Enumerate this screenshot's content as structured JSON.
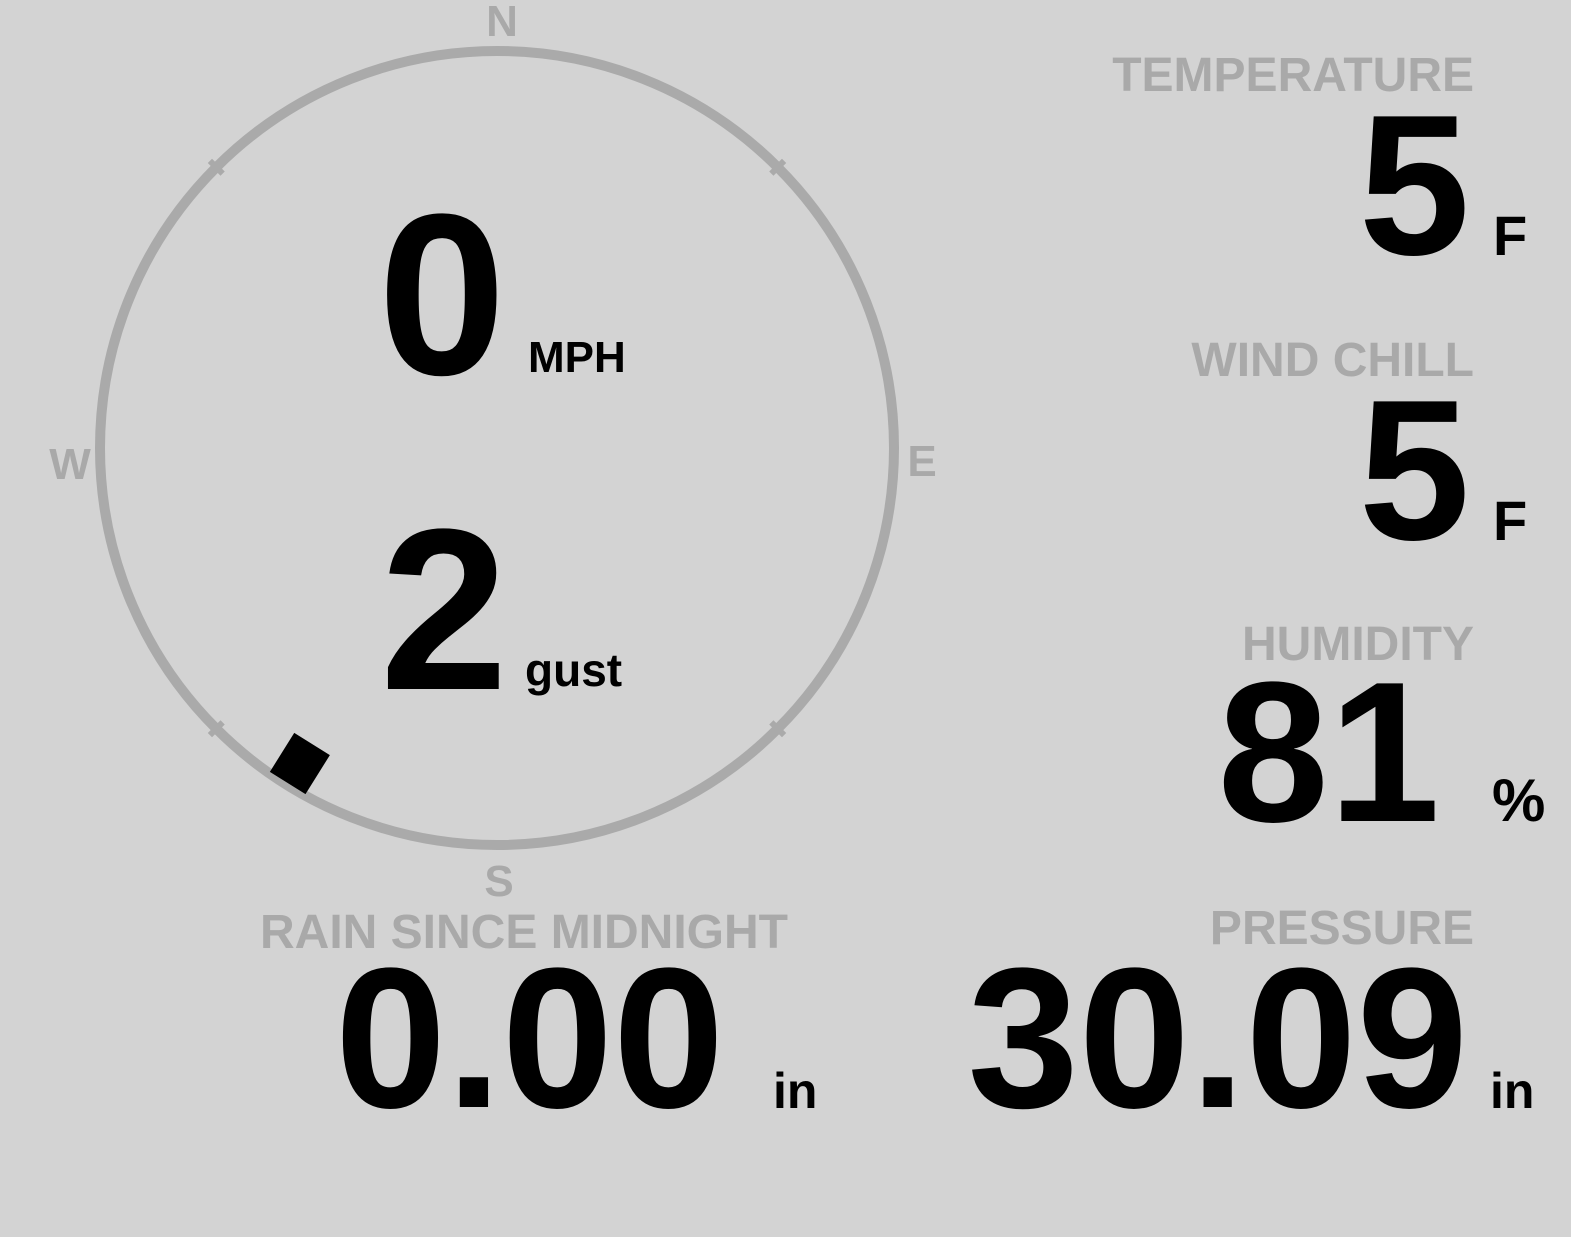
{
  "compass": {
    "north": "N",
    "south": "S",
    "east": "E",
    "west": "W",
    "wind_direction_degrees": 212,
    "colors": {
      "ring": "#aaaaaa",
      "marker": "#000000"
    }
  },
  "wind": {
    "speed": "0",
    "speed_unit": "MPH",
    "gust": "2",
    "gust_unit": "gust"
  },
  "temperature": {
    "label": "TEMPERATURE",
    "value": "5",
    "unit": "F"
  },
  "wind_chill": {
    "label": "WIND CHILL",
    "value": "5",
    "unit": "F"
  },
  "humidity": {
    "label": "HUMIDITY",
    "value": "81",
    "unit": "%"
  },
  "rain": {
    "label": "RAIN SINCE MIDNIGHT",
    "value": "0.00",
    "unit": "in"
  },
  "pressure": {
    "label": "PRESSURE",
    "value": "30.09",
    "unit": "in"
  },
  "colors": {
    "background": "#d3d3d3",
    "label": "#a9a9a9",
    "value": "#000000"
  }
}
